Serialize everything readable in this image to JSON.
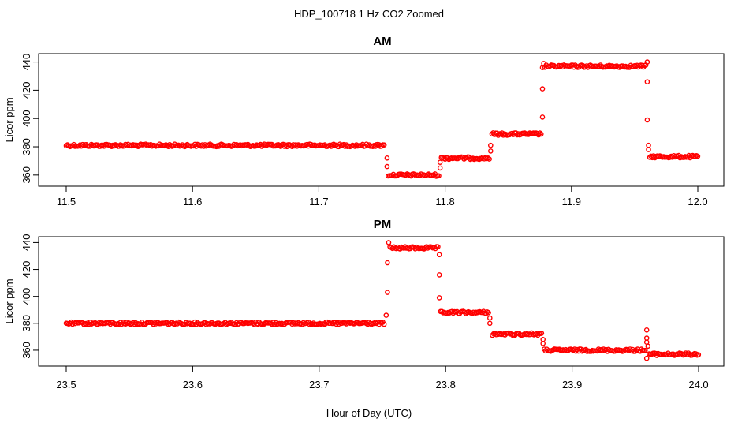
{
  "figure": {
    "title": "HDP_100718  1 Hz CO2 Zoomed",
    "xlabel": "Hour of Day (UTC)"
  },
  "colors": {
    "points": "#ff0000",
    "axes": "#000000",
    "background": "#ffffff"
  },
  "chart_data": [
    {
      "type": "scatter",
      "title": "AM",
      "xlabel": "",
      "ylabel": "Licor ppm",
      "xlim": [
        11.5,
        12.0
      ],
      "ylim": [
        356,
        442
      ],
      "xticks": [
        11.5,
        11.6,
        11.7,
        11.8,
        11.9,
        12.0
      ],
      "xtick_labels": [
        "11.5",
        "11.6",
        "11.7",
        "11.8",
        "11.9",
        "12.0"
      ],
      "yticks": [
        360,
        380,
        400,
        420,
        440
      ],
      "ytick_labels": [
        "360",
        "380",
        "400",
        "420",
        "440"
      ],
      "grid": false,
      "series": [
        {
          "marker": "open-circle",
          "color": "#ff0000",
          "segments": [
            {
              "x_start": 11.5,
              "x_end": 11.752,
              "y": 381
            },
            {
              "x_start": 11.755,
              "x_end": 11.795,
              "y": 360
            },
            {
              "x_start": 11.797,
              "x_end": 11.835,
              "y": 372
            },
            {
              "x_start": 11.837,
              "x_end": 11.876,
              "y": 389
            },
            {
              "x_start": 11.879,
              "x_end": 11.959,
              "y": 437
            },
            {
              "x_start": 11.962,
              "x_end": 12.0,
              "y": 373
            }
          ],
          "transitions": [
            {
              "x": 11.754,
              "y": [
                372,
                366
              ]
            },
            {
              "x": 11.796,
              "y": [
                365,
                369
              ]
            },
            {
              "x": 11.836,
              "y": [
                377,
                381
              ]
            },
            {
              "x": 11.877,
              "y": [
                401,
                421,
                436
              ]
            },
            {
              "x": 11.878,
              "y": [
                439
              ]
            },
            {
              "x": 11.96,
              "y": [
                440,
                426,
                399
              ]
            },
            {
              "x": 11.961,
              "y": [
                381,
                378
              ]
            }
          ]
        }
      ]
    },
    {
      "type": "scatter",
      "title": "PM",
      "xlabel": "",
      "ylabel": "Licor ppm",
      "xlim": [
        23.5,
        24.0
      ],
      "ylim": [
        350,
        442
      ],
      "xticks": [
        23.5,
        23.6,
        23.7,
        23.8,
        23.9,
        24.0
      ],
      "xtick_labels": [
        "23.5",
        "23.6",
        "23.7",
        "23.8",
        "23.9",
        "24.0"
      ],
      "yticks": [
        360,
        380,
        400,
        420,
        440
      ],
      "ytick_labels": [
        "360",
        "380",
        "400",
        "420",
        "440"
      ],
      "grid": false,
      "series": [
        {
          "marker": "open-circle",
          "color": "#ff0000",
          "segments": [
            {
              "x_start": 23.5,
              "x_end": 23.752,
              "y": 380
            },
            {
              "x_start": 23.756,
              "x_end": 23.794,
              "y": 436
            },
            {
              "x_start": 23.796,
              "x_end": 23.834,
              "y": 388
            },
            {
              "x_start": 23.837,
              "x_end": 23.876,
              "y": 372
            },
            {
              "x_start": 23.878,
              "x_end": 23.958,
              "y": 360
            },
            {
              "x_start": 23.961,
              "x_end": 24.0,
              "y": 357
            }
          ],
          "transitions": [
            {
              "x": 23.753,
              "y": [
                386
              ]
            },
            {
              "x": 23.754,
              "y": [
                403,
                425
              ]
            },
            {
              "x": 23.755,
              "y": [
                440
              ]
            },
            {
              "x": 23.795,
              "y": [
                431,
                416,
                399
              ]
            },
            {
              "x": 23.835,
              "y": [
                384,
                380
              ]
            },
            {
              "x": 23.877,
              "y": [
                368,
                365
              ]
            },
            {
              "x": 23.959,
              "y": [
                375,
                369,
                366,
                354
              ]
            },
            {
              "x": 23.96,
              "y": [
                363
              ]
            }
          ]
        }
      ]
    }
  ]
}
